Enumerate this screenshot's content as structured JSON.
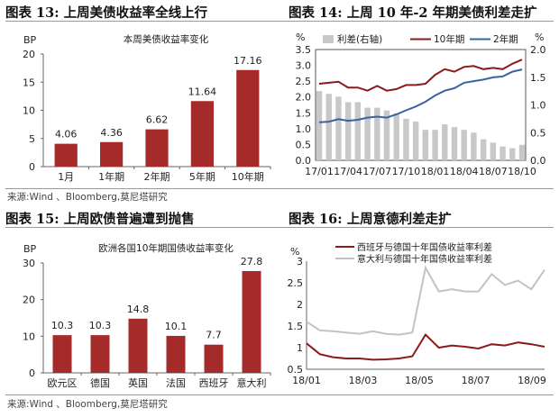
{
  "figures": {
    "fig13": {
      "title": "图表 13:  上周美债收益率全线上行"
    },
    "fig14": {
      "title": "图表 14:  上周 10 年-2 年期美债利差走扩"
    },
    "fig15": {
      "title": "图表 15:  上周欧债普遍遭到抛售"
    },
    "fig16": {
      "title": "图表 16:  上周意德利差走扩"
    }
  },
  "sources": {
    "top": "来源:Wind 、Bloomberg,莫尼塔研究",
    "bottom": "来源:Wind 、Bloomberg,莫尼塔研究"
  },
  "colors": {
    "bar": "#a52a2a",
    "line_dark_red": "#8b1a1a",
    "line_blue": "#3a62a0",
    "line_gray": "#c2c2c2",
    "spread_bar": "#c8c8c8"
  },
  "chart_data": [
    {
      "id": "fig13",
      "type": "bar",
      "title": "本周美债收益率变化",
      "ylabel": "BP",
      "categories": [
        "1月",
        "1年期",
        "2年期",
        "5年期",
        "10年期"
      ],
      "values": [
        4.06,
        4.36,
        6.62,
        11.64,
        17.16
      ],
      "value_labels": [
        "4.06",
        "4.36",
        "6.62",
        "11.64",
        "17.16"
      ],
      "ylim": [
        0,
        20
      ],
      "yticks": [
        "0",
        "5",
        "10",
        "15",
        "20"
      ],
      "grid": false
    },
    {
      "id": "fig14",
      "type": "line",
      "ylabel_left": "%",
      "ylabel_right": "%",
      "legend": [
        "利差(右轴)",
        "10年期",
        "2年期"
      ],
      "legend_position": "top",
      "ylim_left": [
        0,
        3.5
      ],
      "yticks_left": [
        "0.0",
        "0.5",
        "1.0",
        "1.5",
        "2.0",
        "2.5",
        "3.0",
        "3.5"
      ],
      "ylim_right": [
        0,
        2.0
      ],
      "yticks_right": [
        "0.0",
        "0.5",
        "1.0",
        "1.5",
        "2.0"
      ],
      "xticks": [
        "17/01",
        "17/04",
        "17/07",
        "17/10",
        "18/01",
        "18/04",
        "18/07",
        "18/10"
      ],
      "x": [
        "17/01",
        "17/02",
        "17/03",
        "17/04",
        "17/05",
        "17/06",
        "17/07",
        "17/08",
        "17/09",
        "17/10",
        "17/11",
        "17/12",
        "18/01",
        "18/02",
        "18/03",
        "18/04",
        "18/05",
        "18/06",
        "18/07",
        "18/08",
        "18/09",
        "18/10"
      ],
      "series": [
        {
          "name": "利差(右轴)",
          "axis": "right",
          "style": "bar",
          "values": [
            1.25,
            1.2,
            1.15,
            1.05,
            1.05,
            0.95,
            0.95,
            0.9,
            0.85,
            0.75,
            0.7,
            0.55,
            0.55,
            0.65,
            0.6,
            0.55,
            0.5,
            0.38,
            0.32,
            0.25,
            0.22,
            0.28
          ]
        },
        {
          "name": "10年期",
          "axis": "left",
          "style": "line",
          "values": [
            2.42,
            2.45,
            2.48,
            2.3,
            2.3,
            2.2,
            2.35,
            2.2,
            2.25,
            2.38,
            2.38,
            2.42,
            2.7,
            2.88,
            2.8,
            2.95,
            2.98,
            2.88,
            2.92,
            2.88,
            3.05,
            3.18
          ]
        },
        {
          "name": "2年期",
          "axis": "left",
          "style": "line",
          "values": [
            1.2,
            1.22,
            1.3,
            1.25,
            1.28,
            1.35,
            1.38,
            1.35,
            1.45,
            1.58,
            1.7,
            1.85,
            2.05,
            2.2,
            2.28,
            2.45,
            2.5,
            2.55,
            2.62,
            2.65,
            2.8,
            2.87
          ]
        }
      ]
    },
    {
      "id": "fig15",
      "type": "bar",
      "title": "欧洲各国10年期国债收益率变化",
      "ylabel": "BP",
      "categories": [
        "欧元区",
        "德国",
        "英国",
        "法国",
        "西班牙",
        "意大利"
      ],
      "values": [
        10.3,
        10.3,
        14.8,
        10.1,
        7.7,
        27.8
      ],
      "value_labels": [
        "10.3",
        "10.3",
        "14.8",
        "10.1",
        "7.7",
        "27.8"
      ],
      "ylim": [
        0,
        30
      ],
      "yticks": [
        "0",
        "10",
        "20",
        "30"
      ],
      "grid": false
    },
    {
      "id": "fig16",
      "type": "line",
      "ylabel": "%",
      "legend": [
        "西班牙与德国十年国债收益率利差",
        "意大利与德国十年国债收益率利差"
      ],
      "legend_position": "top",
      "ylim": [
        0.5,
        3.0
      ],
      "yticks": [
        "0.5",
        "1",
        "1.5",
        "2",
        "2.5",
        "3"
      ],
      "xticks": [
        "18/01",
        "18/03",
        "18/05",
        "18/07",
        "18/09"
      ],
      "x": [
        "18/01",
        "18/01b",
        "18/02",
        "18/02b",
        "18/03",
        "18/03b",
        "18/04",
        "18/04b",
        "18/05",
        "18/05b",
        "18/06",
        "18/06b",
        "18/07",
        "18/07b",
        "18/08",
        "18/08b",
        "18/09",
        "18/09b",
        "18/10"
      ],
      "series": [
        {
          "name": "西班牙与德国十年国债收益率利差",
          "values": [
            1.1,
            0.85,
            0.78,
            0.75,
            0.75,
            0.72,
            0.73,
            0.75,
            0.8,
            1.3,
            1.0,
            1.05,
            1.02,
            0.98,
            1.08,
            1.05,
            1.12,
            1.08,
            1.02
          ]
        },
        {
          "name": "意大利与德国十年国债收益率利差",
          "values": [
            1.6,
            1.4,
            1.38,
            1.35,
            1.32,
            1.38,
            1.32,
            1.3,
            1.35,
            2.85,
            2.3,
            2.35,
            2.3,
            2.3,
            2.7,
            2.45,
            2.55,
            2.35,
            2.8
          ]
        }
      ]
    }
  ]
}
